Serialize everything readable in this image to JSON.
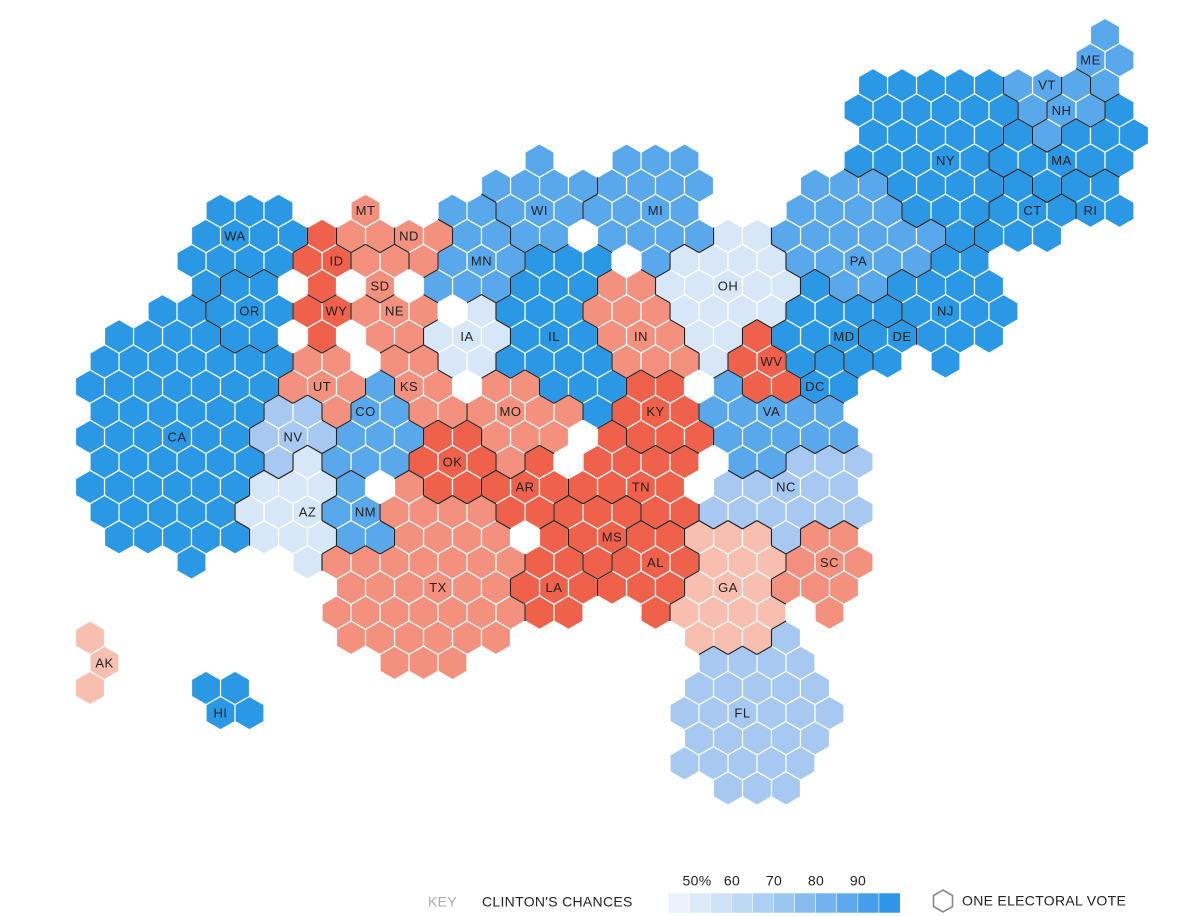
{
  "states": [
    {
      "label": "WA",
      "electoral_votes": 12,
      "color": "#2b98e6"
    },
    {
      "label": "OR",
      "electoral_votes": 7,
      "color": "#2b98e6"
    },
    {
      "label": "CA",
      "electoral_votes": 55,
      "color": "#2b98e6"
    },
    {
      "label": "NV",
      "electoral_votes": 6,
      "color": "#a6c8f1"
    },
    {
      "label": "ID",
      "electoral_votes": 4,
      "color": "#f0614c"
    },
    {
      "label": "MT",
      "electoral_votes": 3,
      "color": "#f4917e"
    },
    {
      "label": "ND",
      "electoral_votes": 3,
      "color": "#f4917e"
    },
    {
      "label": "SD",
      "electoral_votes": 3,
      "color": "#f4917e"
    },
    {
      "label": "WY",
      "electoral_votes": 3,
      "color": "#f0614c"
    },
    {
      "label": "NE",
      "electoral_votes": 5,
      "color": "#f4917e"
    },
    {
      "label": "UT",
      "electoral_votes": 6,
      "color": "#f4917e"
    },
    {
      "label": "CO",
      "electoral_votes": 9,
      "color": "#5aa8ec"
    },
    {
      "label": "AZ",
      "electoral_votes": 11,
      "color": "#d8e7f8"
    },
    {
      "label": "NM",
      "electoral_votes": 5,
      "color": "#5aa8ec"
    },
    {
      "label": "KS",
      "electoral_votes": 6,
      "color": "#f4917e"
    },
    {
      "label": "OK",
      "electoral_votes": 7,
      "color": "#f0614c"
    },
    {
      "label": "TX",
      "electoral_votes": 38,
      "color": "#f4917e"
    },
    {
      "label": "MN",
      "electoral_votes": 10,
      "color": "#5aa8ec"
    },
    {
      "label": "IA",
      "electoral_votes": 6,
      "color": "#d8e7f8"
    },
    {
      "label": "MO",
      "electoral_votes": 10,
      "color": "#f4917e"
    },
    {
      "label": "AR",
      "electoral_votes": 6,
      "color": "#f0614c"
    },
    {
      "label": "LA",
      "electoral_votes": 8,
      "color": "#f0614c"
    },
    {
      "label": "WI",
      "electoral_votes": 10,
      "color": "#5aa8ec"
    },
    {
      "label": "IL",
      "electoral_votes": 20,
      "color": "#2b98e6"
    },
    {
      "label": "MI",
      "electoral_votes": 16,
      "color": "#5aa8ec"
    },
    {
      "label": "IN",
      "electoral_votes": 11,
      "color": "#f4917e"
    },
    {
      "label": "KY",
      "electoral_votes": 8,
      "color": "#f0614c"
    },
    {
      "label": "TN",
      "electoral_votes": 11,
      "color": "#f0614c"
    },
    {
      "label": "MS",
      "electoral_votes": 6,
      "color": "#f0614c"
    },
    {
      "label": "AL",
      "electoral_votes": 9,
      "color": "#f0614c"
    },
    {
      "label": "OH",
      "electoral_votes": 18,
      "color": "#d8e7f8"
    },
    {
      "label": "WV",
      "electoral_votes": 5,
      "color": "#f0614c"
    },
    {
      "label": "PA",
      "electoral_votes": 20,
      "color": "#5aa8ec"
    },
    {
      "label": "VA",
      "electoral_votes": 13,
      "color": "#5aa8ec"
    },
    {
      "label": "NC",
      "electoral_votes": 15,
      "color": "#a6c8f1"
    },
    {
      "label": "SC",
      "electoral_votes": 9,
      "color": "#f4917e"
    },
    {
      "label": "GA",
      "electoral_votes": 16,
      "color": "#f8bfb1"
    },
    {
      "label": "FL",
      "electoral_votes": 29,
      "color": "#a6c8f1"
    },
    {
      "label": "NY",
      "electoral_votes": 29,
      "color": "#2b98e6"
    },
    {
      "label": "VT",
      "electoral_votes": 3,
      "color": "#5aa8ec"
    },
    {
      "label": "NH",
      "electoral_votes": 4,
      "color": "#5aa8ec"
    },
    {
      "label": "ME",
      "electoral_votes": 4,
      "color": "#5aa8ec"
    },
    {
      "label": "MA",
      "electoral_votes": 11,
      "color": "#2b98e6"
    },
    {
      "label": "CT",
      "electoral_votes": 7,
      "color": "#2b98e6"
    },
    {
      "label": "RI",
      "electoral_votes": 4,
      "color": "#2b98e6"
    },
    {
      "label": "NJ",
      "electoral_votes": 14,
      "color": "#2b98e6"
    },
    {
      "label": "DE",
      "electoral_votes": 3,
      "color": "#2b98e6"
    },
    {
      "label": "MD",
      "electoral_votes": 10,
      "color": "#2b98e6"
    },
    {
      "label": "DC",
      "electoral_votes": 3,
      "color": "#2b98e6"
    },
    {
      "label": "AK",
      "electoral_votes": 3,
      "color": "#f8bfb1"
    },
    {
      "label": "HI",
      "electoral_votes": 4,
      "color": "#2b98e6"
    }
  ],
  "key": {
    "label": "KEY",
    "title": "CLINTON'S CHANCES",
    "ticks": [
      {
        "value": 50,
        "label": "50%"
      },
      60,
      70,
      80,
      90
    ],
    "range": [
      50,
      100
    ],
    "colors": [
      "#eaf3fc",
      "#dbeaf9",
      "#cde2f7",
      "#bdd9f5",
      "#acd0f3",
      "#9bc6f1",
      "#87bcf0",
      "#72b2ee",
      "#5ca8ec",
      "#459eea",
      "#2f95e8"
    ],
    "unit_label": "ONE ELECTORAL VOTE"
  }
}
